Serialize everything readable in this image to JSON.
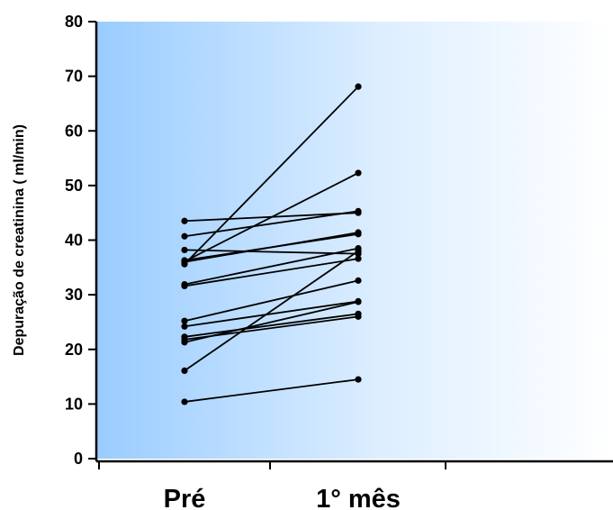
{
  "chart_data": {
    "type": "line",
    "title": "",
    "xlabel": "",
    "ylabel": "Depuração de creatinina ( ml/min)",
    "categories": [
      "Pré",
      "1° mês"
    ],
    "ylim": [
      0,
      80
    ],
    "yticks": [
      0,
      10,
      20,
      30,
      40,
      50,
      60,
      70,
      80
    ],
    "grid": false,
    "legend": "none",
    "marker": "circle",
    "series": [
      {
        "values": [
          43.5,
          45.0
        ]
      },
      {
        "values": [
          40.7,
          45.3
        ]
      },
      {
        "values": [
          38.2,
          37.5
        ]
      },
      {
        "values": [
          36.3,
          41.1
        ]
      },
      {
        "values": [
          36.0,
          41.4
        ]
      },
      {
        "values": [
          35.6,
          68.1
        ]
      },
      {
        "values": [
          31.9,
          38.5
        ]
      },
      {
        "values": [
          31.6,
          36.6
        ]
      },
      {
        "values": [
          25.2,
          32.6
        ]
      },
      {
        "values": [
          24.2,
          28.8
        ]
      },
      {
        "values": [
          22.3,
          26.5
        ]
      },
      {
        "values": [
          21.8,
          26.0
        ]
      },
      {
        "values": [
          21.3,
          28.7
        ]
      },
      {
        "values": [
          16.1,
          38.0
        ]
      },
      {
        "values": [
          10.4,
          14.5
        ]
      },
      {
        "values": [
          36.1,
          52.3
        ]
      }
    ],
    "colors": {
      "plot_top": "#99CCFF",
      "plot_bottom": "#FFFFFF",
      "line": "#000000",
      "marker": "#000000",
      "axis": "#000000",
      "background": "#FFFFFF"
    }
  }
}
